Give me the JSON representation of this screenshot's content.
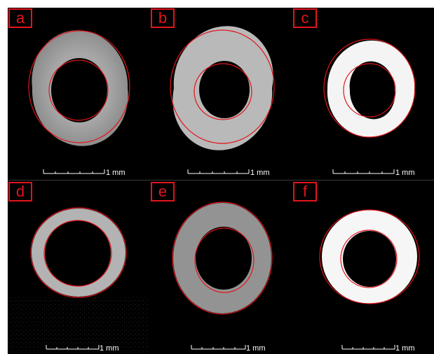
{
  "figure": {
    "panels": [
      {
        "id": "a",
        "label": "a",
        "scale_label": "1 mm",
        "ring": "gray"
      },
      {
        "id": "b",
        "label": "b",
        "scale_label": "1 mm",
        "ring": "lightgray"
      },
      {
        "id": "c",
        "label": "c",
        "scale_label": "1 mm",
        "ring": "white"
      },
      {
        "id": "d",
        "label": "d",
        "scale_label": "1 mm",
        "ring": "gray"
      },
      {
        "id": "e",
        "label": "e",
        "scale_label": "1 mm",
        "ring": "darkgray"
      },
      {
        "id": "f",
        "label": "f",
        "scale_label": "1 mm",
        "ring": "white"
      }
    ],
    "colors": {
      "background": "#000000",
      "outline": "#e3141b",
      "label": "#e3141b",
      "scale_bar": "#ffffff"
    }
  }
}
